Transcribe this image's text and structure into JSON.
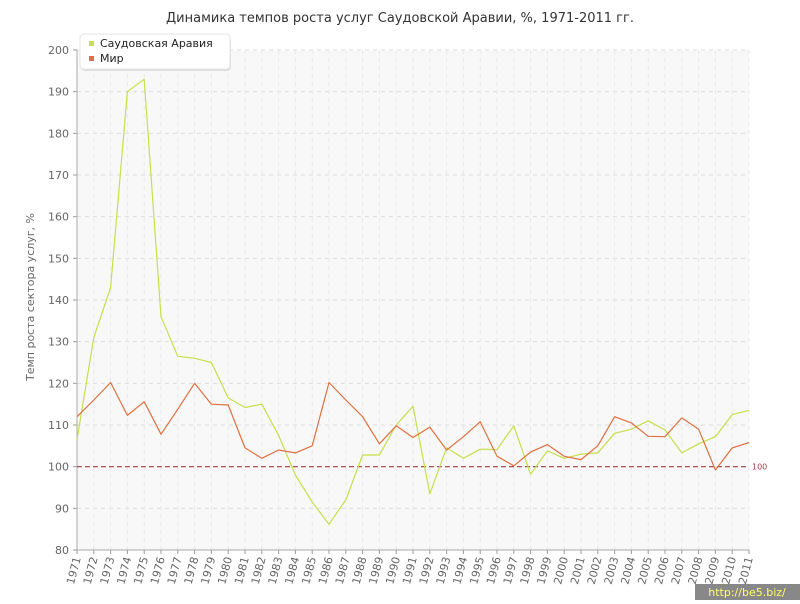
{
  "chart_data": {
    "type": "line",
    "title": "Динамика темпов роста услуг Саудовской Аравии, %, 1971-2011 гг.",
    "xlabel": "",
    "ylabel": "Темп роста сектора услуг, %",
    "ylim": [
      80,
      200
    ],
    "yticks": [
      80,
      90,
      100,
      110,
      120,
      130,
      140,
      150,
      160,
      170,
      180,
      190,
      200
    ],
    "grid": true,
    "legend_position": "top-left",
    "x": [
      "1971",
      "1972",
      "1973",
      "1974",
      "1975",
      "1976",
      "1977",
      "1978",
      "1979",
      "1980",
      "1981",
      "1982",
      "1983",
      "1984",
      "1985",
      "1986",
      "1987",
      "1988",
      "1989",
      "1990",
      "1991",
      "1992",
      "1993",
      "1994",
      "1995",
      "1996",
      "1997",
      "1998",
      "1999",
      "2000",
      "2001",
      "2002",
      "2003",
      "2004",
      "2005",
      "2006",
      "2007",
      "2008",
      "2009",
      "2010",
      "2011"
    ],
    "series": [
      {
        "name": "Саудовская Аравия",
        "color": "#c5e04a",
        "values": [
          106.5,
          131,
          143,
          190,
          193,
          136,
          126.5,
          126,
          125,
          116.5,
          114.2,
          115,
          107.5,
          98,
          91.5,
          86.2,
          92,
          102.8,
          102.8,
          110,
          114.5,
          93.5,
          104.5,
          102,
          104.2,
          104.1,
          109.8,
          98.2,
          103.8,
          102,
          103,
          103.3,
          108,
          109,
          111,
          108.8,
          103.3,
          105.5,
          107.2,
          112.5,
          113.5
        ]
      },
      {
        "name": "Мир",
        "color": "#e07040",
        "values": [
          112,
          116,
          120.2,
          112.3,
          115.6,
          107.8,
          113.8,
          120,
          115,
          114.8,
          104.5,
          102,
          104,
          103.3,
          105,
          120.2,
          116,
          112,
          105.5,
          109.8,
          107,
          109.5,
          104,
          107.2,
          110.8,
          102.5,
          100.2,
          103.5,
          105.3,
          102.5,
          101.7,
          105,
          112,
          110.5,
          107.3,
          107.2,
          111.7,
          109,
          99.2,
          104.5,
          105.8
        ]
      }
    ],
    "reference_line": {
      "value": 100,
      "label": "100",
      "color": "#a0404a"
    }
  },
  "watermark": "http://be5.biz/"
}
